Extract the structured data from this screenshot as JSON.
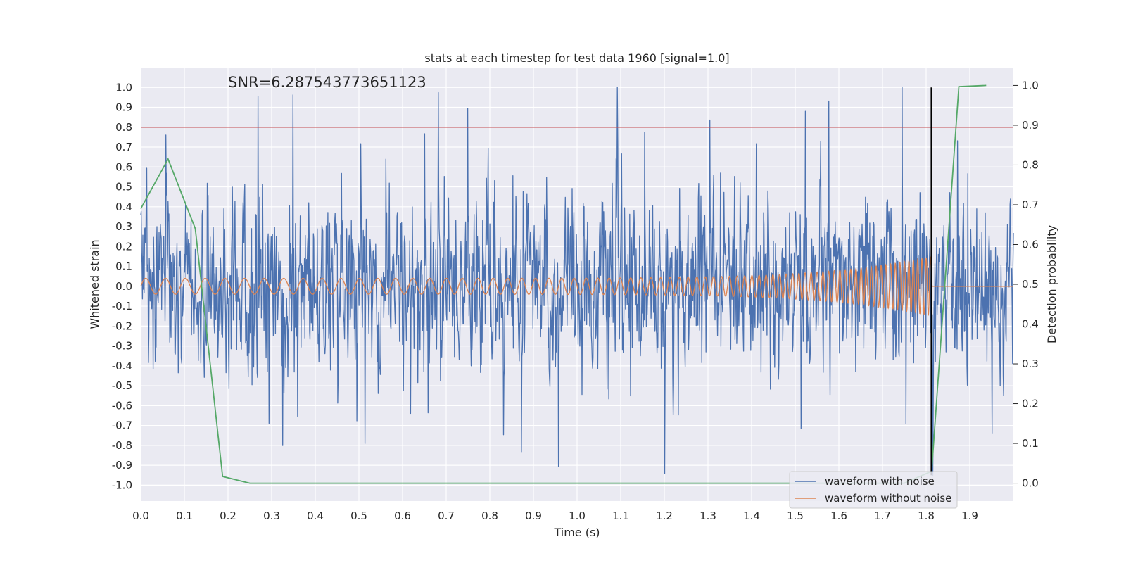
{
  "chart_data": {
    "type": "line",
    "title": "stats at each timestep for test data 1960 [signal=1.0]",
    "annotation": "SNR=6.287543773651123",
    "xlabel": "Time (s)",
    "ylabel_left": "Whitened strain",
    "ylabel_right": "Detection probability",
    "xlim": [
      0.0,
      2.0
    ],
    "ylim_left": [
      -1.08,
      1.1
    ],
    "ylim_right": [
      -0.045,
      1.045
    ],
    "x_ticks": [
      "0.0",
      "0.1",
      "0.2",
      "0.3",
      "0.4",
      "0.5",
      "0.6",
      "0.7",
      "0.8",
      "0.9",
      "1.0",
      "1.1",
      "1.2",
      "1.3",
      "1.4",
      "1.5",
      "1.6",
      "1.7",
      "1.8",
      "1.9"
    ],
    "y_ticks_left": [
      "1.0",
      "0.9",
      "0.8",
      "0.7",
      "0.6",
      "0.5",
      "0.4",
      "0.3",
      "0.2",
      "0.1",
      "0.0",
      "-0.1",
      "-0.2",
      "-0.3",
      "-0.4",
      "-0.5",
      "-0.6",
      "-0.7",
      "-0.8",
      "-0.9",
      "-1.0"
    ],
    "y_ticks_right": [
      "1.0",
      "0.9",
      "0.8",
      "0.7",
      "0.6",
      "0.5",
      "0.4",
      "0.3",
      "0.2",
      "0.1",
      "0.0"
    ],
    "threshold": {
      "value": 0.8,
      "axis": "left",
      "color": "#c44e52"
    },
    "merger_time": {
      "x": 1.812,
      "y_range": [
        -0.95,
        1.0
      ],
      "color": "#000000"
    },
    "noisy_waveform": {
      "name": "waveform with noise",
      "color": "#4c72b0",
      "samples": 2048,
      "x_range": [
        0.0,
        2.0
      ],
      "amplitude_min": -0.97,
      "amplitude_max": 1.0
    },
    "clean_waveform": {
      "name": "waveform without noise",
      "color": "#dd8452",
      "type": "chirp",
      "start_freq_hz": 22,
      "end_freq_hz": 105,
      "start_amplitude": 0.04,
      "peak_amplitude": 0.15,
      "end_x": 1.812
    },
    "detection_probability": {
      "name": "detection probability",
      "color": "#55a868",
      "x": [
        0.0,
        0.0625,
        0.125,
        0.1875,
        0.25,
        0.3125,
        0.375,
        0.4375,
        0.5,
        0.5625,
        0.625,
        0.6875,
        0.75,
        0.8125,
        0.875,
        0.9375,
        1.0,
        1.0625,
        1.125,
        1.1875,
        1.25,
        1.3125,
        1.375,
        1.4375,
        1.5,
        1.5625,
        1.625,
        1.6875,
        1.75,
        1.8125,
        1.875,
        1.9375
      ],
      "values": [
        0.69,
        0.815,
        0.64,
        0.017,
        0.0,
        0.0,
        0.0,
        0.0,
        0.0,
        0.0,
        0.0,
        0.0,
        0.0,
        0.0,
        0.0,
        0.0,
        0.0,
        0.0,
        0.0,
        0.0,
        0.0,
        0.0,
        0.0,
        0.0,
        0.0,
        0.0,
        0.0,
        0.0,
        0.0,
        0.03,
        0.997,
        1.0
      ]
    },
    "legend": {
      "position": "lower-right",
      "entries": [
        "waveform with noise",
        "waveform without noise"
      ]
    }
  }
}
